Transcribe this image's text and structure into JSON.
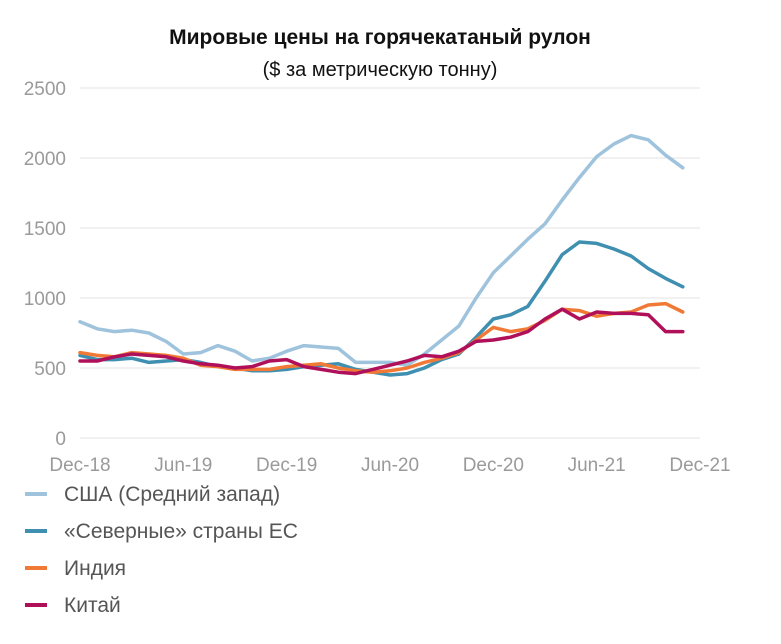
{
  "chart_data": {
    "type": "line",
    "title": "Мировые цены на горячекатаный рулон",
    "subtitle": "($ за метрическую тонну)",
    "xlabel": "",
    "ylabel": "",
    "ylim": [
      0,
      2500
    ],
    "yticks": [
      "0",
      "500",
      "1000",
      "1500",
      "2000",
      "2500"
    ],
    "xticks": [
      "Dec-18",
      "Jun-19",
      "Dec-19",
      "Jun-20",
      "Dec-20",
      "Jun-21",
      "Dec-21"
    ],
    "x": [
      "Dec-18",
      "Jan-19",
      "Feb-19",
      "Mar-19",
      "Apr-19",
      "May-19",
      "Jun-19",
      "Jul-19",
      "Aug-19",
      "Sep-19",
      "Oct-19",
      "Nov-19",
      "Dec-19",
      "Jan-20",
      "Feb-20",
      "Mar-20",
      "Apr-20",
      "May-20",
      "Jun-20",
      "Jul-20",
      "Aug-20",
      "Sep-20",
      "Oct-20",
      "Nov-20",
      "Dec-20",
      "Jan-21",
      "Feb-21",
      "Mar-21",
      "Apr-21",
      "May-21",
      "Jun-21",
      "Jul-21",
      "Aug-21",
      "Sep-21",
      "Oct-21",
      "Nov-21",
      "Dec-21"
    ],
    "grid": true,
    "legend_position": "bottom",
    "series": [
      {
        "name": "США (Средний запад)",
        "color": "#9fc3dc",
        "values": [
          830,
          780,
          760,
          770,
          750,
          690,
          600,
          610,
          660,
          620,
          550,
          570,
          620,
          660,
          650,
          640,
          540,
          540,
          540,
          520,
          600,
          700,
          800,
          1000,
          1180,
          1300,
          1420,
          1530,
          1700,
          1860,
          2010,
          2100,
          2160,
          2130,
          2020,
          1930,
          null
        ]
      },
      {
        "name": "«Северные» страны ЕС",
        "color": "#3f8fb0",
        "values": [
          590,
          560,
          560,
          570,
          540,
          550,
          560,
          540,
          510,
          500,
          480,
          480,
          490,
          510,
          520,
          530,
          490,
          470,
          450,
          460,
          500,
          560,
          600,
          720,
          850,
          880,
          940,
          1120,
          1310,
          1400,
          1390,
          1350,
          1300,
          1210,
          1140,
          1080,
          null
        ]
      },
      {
        "name": "Индия",
        "color": "#f07a35",
        "values": [
          610,
          590,
          580,
          610,
          600,
          590,
          570,
          520,
          510,
          490,
          490,
          490,
          510,
          520,
          530,
          500,
          480,
          470,
          480,
          500,
          540,
          570,
          610,
          700,
          790,
          760,
          780,
          840,
          920,
          910,
          870,
          890,
          900,
          950,
          960,
          900,
          null
        ]
      },
      {
        "name": "Китай",
        "color": "#b0105a",
        "values": [
          550,
          550,
          580,
          600,
          590,
          580,
          550,
          530,
          520,
          500,
          510,
          550,
          560,
          510,
          490,
          470,
          460,
          490,
          520,
          550,
          590,
          580,
          620,
          690,
          700,
          720,
          760,
          850,
          920,
          850,
          900,
          890,
          890,
          880,
          760,
          760,
          null
        ]
      }
    ]
  }
}
